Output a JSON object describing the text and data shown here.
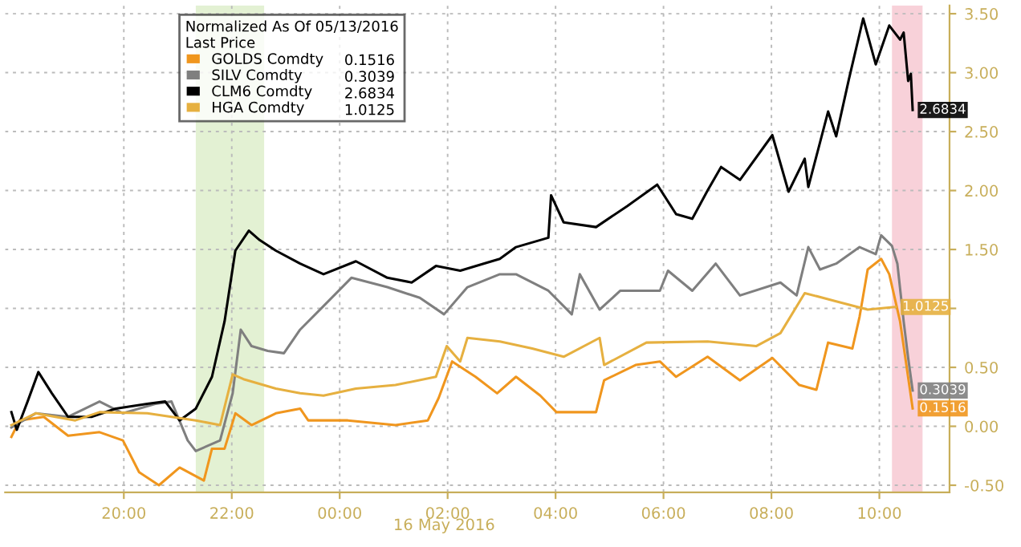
{
  "chart_data": {
    "type": "line",
    "legend_title": "Normalized As Of 05/13/2016\nLast Price",
    "xlim": [
      "2016-05-15T17:48",
      "2016-05-16T11:18"
    ],
    "xticks": [
      {
        "value": "2016-05-15T20:00",
        "label": "20:00"
      },
      {
        "value": "2016-05-15T22:00",
        "label": "22:00"
      },
      {
        "value": "2016-05-16T00:00",
        "label": "00:00"
      },
      {
        "value": "2016-05-16T02:00",
        "label": "02:00"
      },
      {
        "value": "2016-05-16T04:00",
        "label": "04:00"
      },
      {
        "value": "2016-05-16T06:00",
        "label": "06:00"
      },
      {
        "value": "2016-05-16T08:00",
        "label": "08:00"
      },
      {
        "value": "2016-05-16T10:00",
        "label": "10:00"
      }
    ],
    "ylim": [
      -0.56,
      3.57
    ],
    "yticks": [
      {
        "value": -0.5,
        "label": "-0.50"
      },
      {
        "value": 0,
        "label": "0.00"
      },
      {
        "value": 0.5,
        "label": "0.50"
      },
      {
        "value": 1,
        "label": null
      },
      {
        "value": 1.5,
        "label": "1.50"
      },
      {
        "value": 2,
        "label": "2.00"
      },
      {
        "value": 2.5,
        "label": "2.50"
      },
      {
        "value": 3,
        "label": "3.00"
      },
      {
        "value": 3.5,
        "label": "3.50"
      }
    ],
    "grid": true,
    "legend": "top left",
    "line_style": "solid",
    "marker": "none",
    "bands": [
      {
        "axis": "x",
        "from": "2016-05-15T21:20",
        "to": "2016-05-15T22:36",
        "color": "#dcedc8"
      },
      {
        "axis": "x",
        "from": "2016-05-16T10:14",
        "to": "2016-05-16T10:48",
        "color": "#f6c6cf"
      }
    ],
    "annotations": [
      "16 May 2016"
    ],
    "series": [
      {
        "name": "GOLDS Comdty",
        "color": "#f0961e",
        "x": [
          "2016-05-15T17:55",
          "2016-05-15T18:04",
          "2016-05-15T18:31",
          "2016-05-15T18:58",
          "2016-05-15T19:33",
          "2016-05-15T19:59",
          "2016-05-15T20:17",
          "2016-05-15T20:39",
          "2016-05-15T21:02",
          "2016-05-15T21:29",
          "2016-05-15T21:38",
          "2016-05-15T21:52",
          "2016-05-15T22:04",
          "2016-05-15T22:22",
          "2016-05-15T22:49",
          "2016-05-15T23:16",
          "2016-05-15T23:25",
          "2016-05-16T00:09",
          "2016-05-16T01:02",
          "2016-05-16T01:38",
          "2016-05-16T01:50",
          "2016-05-16T02:05",
          "2016-05-16T02:31",
          "2016-05-16T02:55",
          "2016-05-16T03:16",
          "2016-05-16T03:43",
          "2016-05-16T04:01",
          "2016-05-16T04:45",
          "2016-05-16T04:54",
          "2016-05-16T05:29",
          "2016-05-16T05:56",
          "2016-05-16T06:14",
          "2016-05-16T06:49",
          "2016-05-16T07:25",
          "2016-05-16T08:01",
          "2016-05-16T08:31",
          "2016-05-16T08:50",
          "2016-05-16T09:03",
          "2016-05-16T09:30",
          "2016-05-16T09:38",
          "2016-05-16T09:47",
          "2016-05-16T10:02",
          "2016-05-16T10:11",
          "2016-05-16T10:23",
          "2016-05-16T10:37"
        ],
        "values": [
          -0.09,
          0.05,
          0.08,
          -0.08,
          -0.05,
          -0.12,
          -0.39,
          -0.5,
          -0.35,
          -0.46,
          -0.19,
          -0.19,
          0.11,
          0.01,
          0.11,
          0.15,
          0.05,
          0.05,
          0.01,
          0.05,
          0.24,
          0.55,
          0.42,
          0.28,
          0.42,
          0.26,
          0.12,
          0.12,
          0.39,
          0.52,
          0.55,
          0.42,
          0.59,
          0.39,
          0.58,
          0.35,
          0.31,
          0.71,
          0.66,
          0.93,
          1.33,
          1.42,
          1.29,
          0.89,
          0.1516
        ],
        "value_labels": [
          null,
          null,
          null,
          null,
          null,
          null,
          null,
          null,
          null,
          null,
          null,
          null,
          null,
          null,
          null,
          null,
          null,
          null,
          null,
          null,
          null,
          null,
          null,
          null,
          null,
          null,
          null,
          null,
          null,
          null,
          null,
          null,
          null,
          null,
          null,
          null,
          null,
          null,
          null,
          null,
          null,
          null,
          null,
          null,
          "0.1516"
        ]
      },
      {
        "name": "SILV Comdty",
        "color": "#7f7f7f",
        "x": [
          "2016-05-15T17:55",
          "2016-05-15T18:22",
          "2016-05-15T18:58",
          "2016-05-15T19:33",
          "2016-05-15T19:59",
          "2016-05-15T20:35",
          "2016-05-15T20:53",
          "2016-05-15T21:11",
          "2016-05-15T21:20",
          "2016-05-15T21:47",
          "2016-05-15T22:01",
          "2016-05-15T22:10",
          "2016-05-15T22:22",
          "2016-05-15T22:40",
          "2016-05-15T22:58",
          "2016-05-15T23:16",
          "2016-05-15T23:42",
          "2016-05-16T00:13",
          "2016-05-16T00:53",
          "2016-05-16T01:29",
          "2016-05-16T01:56",
          "2016-05-16T02:22",
          "2016-05-16T02:58",
          "2016-05-16T03:16",
          "2016-05-16T03:52",
          "2016-05-16T04:18",
          "2016-05-16T04:27",
          "2016-05-16T04:49",
          "2016-05-16T05:12",
          "2016-05-16T05:56",
          "2016-05-16T06:05",
          "2016-05-16T06:32",
          "2016-05-16T06:58",
          "2016-05-16T07:25",
          "2016-05-16T08:10",
          "2016-05-16T08:28",
          "2016-05-16T08:41",
          "2016-05-16T08:54",
          "2016-05-16T09:12",
          "2016-05-16T09:38",
          "2016-05-16T09:56",
          "2016-05-16T10:02",
          "2016-05-16T10:14",
          "2016-05-16T10:20",
          "2016-05-16T10:27",
          "2016-05-16T10:32",
          "2016-05-16T10:37"
        ],
        "values": [
          -0.01,
          0.11,
          0.08,
          0.21,
          0.11,
          0.19,
          0.21,
          -0.12,
          -0.21,
          -0.12,
          0.28,
          0.82,
          0.68,
          0.64,
          0.62,
          0.82,
          1.02,
          1.26,
          1.18,
          1.09,
          0.95,
          1.18,
          1.29,
          1.29,
          1.15,
          0.95,
          1.29,
          0.99,
          1.15,
          1.15,
          1.32,
          1.15,
          1.38,
          1.11,
          1.22,
          1.11,
          1.52,
          1.33,
          1.38,
          1.52,
          1.46,
          1.62,
          1.53,
          1.38,
          0.89,
          0.58,
          0.3039
        ],
        "value_labels": [
          null,
          null,
          null,
          null,
          null,
          null,
          null,
          null,
          null,
          null,
          null,
          null,
          null,
          null,
          null,
          null,
          null,
          null,
          null,
          null,
          null,
          null,
          null,
          null,
          null,
          null,
          null,
          null,
          null,
          null,
          null,
          null,
          null,
          null,
          null,
          null,
          null,
          null,
          null,
          null,
          null,
          null,
          null,
          null,
          null,
          null,
          "0.3039"
        ]
      },
      {
        "name": "CLM6 Comdty",
        "color": "#000000",
        "x": [
          "2016-05-15T17:55",
          "2016-05-15T18:01",
          "2016-05-15T18:13",
          "2016-05-15T18:25",
          "2016-05-15T18:40",
          "2016-05-15T18:58",
          "2016-05-15T19:24",
          "2016-05-15T19:51",
          "2016-05-15T20:26",
          "2016-05-15T20:46",
          "2016-05-15T21:02",
          "2016-05-15T21:20",
          "2016-05-15T21:38",
          "2016-05-15T21:52",
          "2016-05-15T22:04",
          "2016-05-15T22:19",
          "2016-05-15T22:31",
          "2016-05-15T22:49",
          "2016-05-15T23:16",
          "2016-05-15T23:42",
          "2016-05-16T00:18",
          "2016-05-16T00:53",
          "2016-05-16T01:20",
          "2016-05-16T01:47",
          "2016-05-16T02:14",
          "2016-05-16T02:40",
          "2016-05-16T02:58",
          "2016-05-16T03:16",
          "2016-05-16T03:52",
          "2016-05-16T03:55",
          "2016-05-16T04:09",
          "2016-05-16T04:45",
          "2016-05-16T05:20",
          "2016-05-16T05:53",
          "2016-05-16T06:14",
          "2016-05-16T06:32",
          "2016-05-16T06:49",
          "2016-05-16T07:04",
          "2016-05-16T07:25",
          "2016-05-16T08:01",
          "2016-05-16T08:19",
          "2016-05-16T08:37",
          "2016-05-16T08:41",
          "2016-05-16T09:03",
          "2016-05-16T09:12",
          "2016-05-16T09:26",
          "2016-05-16T09:42",
          "2016-05-16T09:56",
          "2016-05-16T10:11",
          "2016-05-16T10:23",
          "2016-05-16T10:27",
          "2016-05-16T10:32",
          "2016-05-16T10:35",
          "2016-05-16T10:37"
        ],
        "values": [
          0.12,
          -0.03,
          0.21,
          0.46,
          0.28,
          0.08,
          0.08,
          0.15,
          0.19,
          0.21,
          0.05,
          0.15,
          0.42,
          0.89,
          1.49,
          1.66,
          1.58,
          1.49,
          1.38,
          1.29,
          1.4,
          1.26,
          1.22,
          1.36,
          1.32,
          1.38,
          1.42,
          1.52,
          1.6,
          1.96,
          1.73,
          1.69,
          1.87,
          2.05,
          1.8,
          1.76,
          2.0,
          2.2,
          2.09,
          2.47,
          1.99,
          2.27,
          2.03,
          2.67,
          2.46,
          2.94,
          3.46,
          3.07,
          3.4,
          3.28,
          3.34,
          2.93,
          2.99,
          2.6834
        ],
        "value_labels": [
          null,
          null,
          null,
          null,
          null,
          null,
          null,
          null,
          null,
          null,
          null,
          null,
          null,
          null,
          null,
          null,
          null,
          null,
          null,
          null,
          null,
          null,
          null,
          null,
          null,
          null,
          null,
          null,
          null,
          null,
          null,
          null,
          null,
          null,
          null,
          null,
          null,
          null,
          null,
          null,
          null,
          null,
          null,
          null,
          null,
          null,
          null,
          null,
          null,
          null,
          null,
          null,
          null,
          "2.6834"
        ]
      },
      {
        "name": "HGA Comdty",
        "color": "#e6b040",
        "x": [
          "2016-05-15T17:55",
          "2016-05-15T18:22",
          "2016-05-15T19:06",
          "2016-05-15T19:33",
          "2016-05-15T20:26",
          "2016-05-15T20:53",
          "2016-05-15T21:20",
          "2016-05-15T21:47",
          "2016-05-15T22:01",
          "2016-05-15T22:13",
          "2016-05-15T22:49",
          "2016-05-15T23:16",
          "2016-05-15T23:42",
          "2016-05-16T00:18",
          "2016-05-16T01:02",
          "2016-05-16T01:47",
          "2016-05-16T01:59",
          "2016-05-16T02:14",
          "2016-05-16T02:22",
          "2016-05-16T02:58",
          "2016-05-16T03:34",
          "2016-05-16T04:09",
          "2016-05-16T04:49",
          "2016-05-16T04:54",
          "2016-05-16T05:41",
          "2016-05-16T06:49",
          "2016-05-16T07:43",
          "2016-05-16T08:10",
          "2016-05-16T08:37",
          "2016-05-16T09:12",
          "2016-05-16T09:47",
          "2016-05-16T10:18"
        ],
        "values": [
          0.01,
          0.11,
          0.05,
          0.12,
          0.11,
          0.08,
          0.05,
          0.01,
          0.44,
          0.4,
          0.32,
          0.28,
          0.26,
          0.32,
          0.35,
          0.42,
          0.68,
          0.55,
          0.75,
          0.72,
          0.66,
          0.59,
          0.75,
          0.52,
          0.71,
          0.72,
          0.68,
          0.79,
          1.13,
          1.06,
          0.99,
          1.0125
        ],
        "value_labels": [
          null,
          null,
          null,
          null,
          null,
          null,
          null,
          null,
          null,
          null,
          null,
          null,
          null,
          null,
          null,
          null,
          null,
          null,
          null,
          null,
          null,
          null,
          null,
          null,
          null,
          null,
          null,
          null,
          null,
          null,
          null,
          "1.0125"
        ]
      }
    ]
  }
}
